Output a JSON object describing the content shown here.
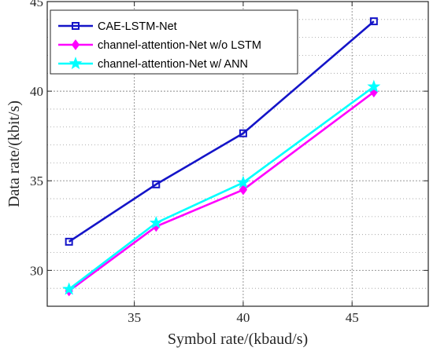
{
  "chart_data": {
    "type": "line",
    "title": "",
    "xlabel": "Symbol rate/(kbaud/s)",
    "ylabel": "Data rate/(kbit/s)",
    "xlim": [
      31,
      48.5
    ],
    "ylim": [
      28,
      45
    ],
    "x_major_ticks": [
      35,
      40,
      45
    ],
    "y_major_ticks": [
      30,
      35,
      40,
      45
    ],
    "y_minor_step": 1,
    "grid": "major and minor, dotted",
    "legend_position": "top-left",
    "series": [
      {
        "name": "CAE-LSTM-Net",
        "color": "#1414c8",
        "marker": "square",
        "x": [
          32,
          36,
          40,
          46
        ],
        "y": [
          31.6,
          34.8,
          37.65,
          43.9
        ]
      },
      {
        "name": "channel-attention-Net w/o LSTM",
        "color": "#ff00ff",
        "marker": "diamond",
        "x": [
          32,
          36,
          40,
          46
        ],
        "y": [
          28.85,
          32.45,
          34.5,
          39.95
        ]
      },
      {
        "name": "channel-attention-Net w/ ANN",
        "color": "#00ffff",
        "marker": "star",
        "x": [
          32,
          36,
          40,
          46
        ],
        "y": [
          28.95,
          32.65,
          34.9,
          40.25
        ]
      }
    ]
  }
}
